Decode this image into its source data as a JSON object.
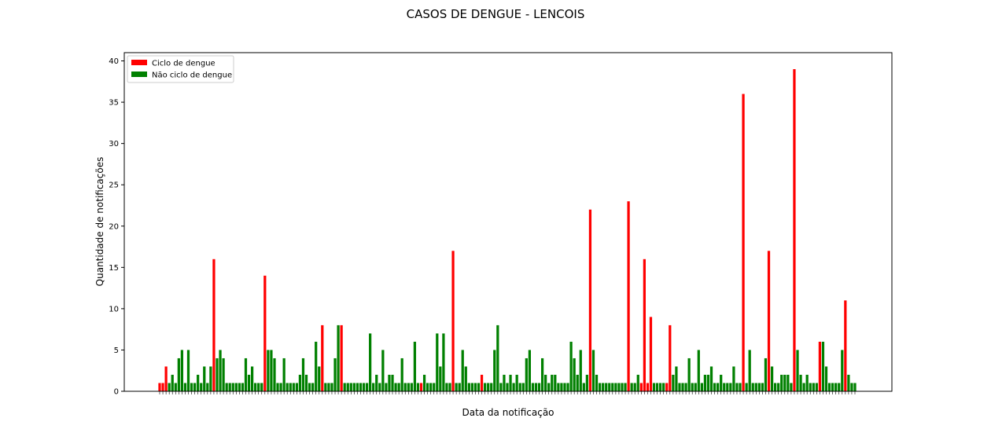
{
  "chart_data": {
    "type": "bar",
    "title": "CASOS DE DENGUE - LENCOIS",
    "xlabel": "Data da notificação",
    "ylabel": "Quantidade de notificações",
    "ylim": [
      0,
      41
    ],
    "yticks": [
      0,
      5,
      10,
      15,
      20,
      25,
      30,
      35,
      40
    ],
    "grid": false,
    "legend_position": "top-left",
    "legend": [
      {
        "label": "Ciclo de dengue",
        "color": "#ff0000"
      },
      {
        "label": "Não ciclo de dengue",
        "color": "#008000"
      }
    ],
    "colors": {
      "cycle": "#ff0000",
      "non_cycle": "#008000"
    },
    "values": [
      1,
      1,
      3,
      1,
      2,
      1,
      4,
      5,
      1,
      5,
      1,
      1,
      2,
      1,
      3,
      1,
      3,
      16,
      4,
      5,
      4,
      1,
      1,
      1,
      1,
      1,
      1,
      4,
      2,
      3,
      1,
      1,
      1,
      14,
      5,
      5,
      4,
      1,
      1,
      4,
      1,
      1,
      1,
      1,
      2,
      4,
      2,
      1,
      1,
      6,
      3,
      8,
      1,
      1,
      1,
      4,
      8,
      8,
      1,
      1,
      1,
      1,
      1,
      1,
      1,
      1,
      7,
      1,
      2,
      1,
      5,
      1,
      2,
      2,
      1,
      1,
      4,
      1,
      1,
      1,
      6,
      1,
      1,
      2,
      1,
      1,
      1,
      7,
      3,
      7,
      1,
      1,
      17,
      1,
      1,
      5,
      3,
      1,
      1,
      1,
      1,
      2,
      1,
      1,
      1,
      5,
      8,
      1,
      2,
      1,
      2,
      1,
      2,
      1,
      1,
      4,
      5,
      1,
      1,
      1,
      4,
      2,
      1,
      2,
      2,
      1,
      1,
      1,
      1,
      6,
      4,
      2,
      5,
      1,
      2,
      22,
      5,
      2,
      1,
      1,
      1,
      1,
      1,
      1,
      1,
      1,
      1,
      23,
      1,
      1,
      2,
      1,
      16,
      1,
      9,
      1,
      1,
      1,
      1,
      1,
      8,
      2,
      3,
      1,
      1,
      1,
      4,
      1,
      1,
      5,
      1,
      2,
      2,
      3,
      1,
      1,
      2,
      1,
      1,
      1,
      3,
      1,
      1,
      36,
      1,
      5,
      1,
      1,
      1,
      1,
      4,
      17,
      3,
      1,
      1,
      2,
      2,
      2,
      1,
      39,
      5,
      2,
      1,
      2,
      1,
      1,
      1,
      6,
      6,
      3,
      1,
      1,
      1,
      1,
      5,
      11,
      2,
      1,
      1
    ],
    "cycle_flags": [
      1,
      1,
      1,
      0,
      0,
      0,
      0,
      0,
      0,
      0,
      0,
      0,
      0,
      0,
      0,
      0,
      0,
      1,
      0,
      0,
      0,
      0,
      0,
      0,
      0,
      0,
      0,
      0,
      0,
      0,
      0,
      0,
      0,
      1,
      0,
      0,
      0,
      0,
      0,
      0,
      0,
      0,
      0,
      0,
      0,
      0,
      0,
      0,
      0,
      0,
      0,
      1,
      0,
      0,
      0,
      0,
      0,
      1,
      0,
      0,
      0,
      0,
      0,
      0,
      0,
      0,
      0,
      0,
      0,
      0,
      0,
      0,
      0,
      0,
      0,
      0,
      0,
      0,
      0,
      0,
      0,
      0,
      1,
      0,
      0,
      0,
      0,
      0,
      0,
      0,
      0,
      0,
      1,
      0,
      0,
      0,
      0,
      0,
      0,
      0,
      0,
      1,
      0,
      0,
      0,
      0,
      0,
      0,
      0,
      0,
      0,
      0,
      0,
      0,
      0,
      0,
      0,
      0,
      0,
      0,
      0,
      0,
      0,
      0,
      0,
      0,
      0,
      0,
      0,
      0,
      0,
      0,
      0,
      0,
      0,
      1,
      0,
      0,
      0,
      0,
      0,
      0,
      0,
      0,
      0,
      0,
      0,
      1,
      0,
      0,
      0,
      1,
      1,
      1,
      1,
      0,
      0,
      0,
      0,
      1,
      1,
      0,
      0,
      0,
      0,
      0,
      0,
      0,
      0,
      0,
      0,
      0,
      0,
      0,
      0,
      0,
      0,
      0,
      0,
      0,
      0,
      0,
      0,
      1,
      0,
      0,
      0,
      0,
      0,
      0,
      0,
      1,
      0,
      0,
      0,
      0,
      0,
      0,
      0,
      1,
      0,
      0,
      0,
      0,
      0,
      0,
      0,
      1,
      0,
      0,
      0,
      0,
      0,
      0,
      0,
      1,
      0,
      0,
      0
    ]
  }
}
